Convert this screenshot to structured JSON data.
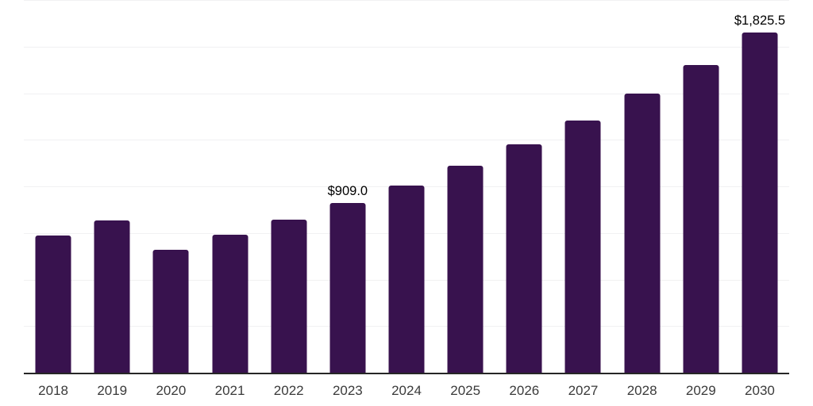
{
  "chart_data": {
    "type": "bar",
    "title": "",
    "xlabel": "",
    "ylabel": "",
    "categories": [
      "2018",
      "2019",
      "2020",
      "2021",
      "2022",
      "2023",
      "2024",
      "2025",
      "2026",
      "2027",
      "2028",
      "2029",
      "2030"
    ],
    "values": [
      736,
      817,
      660,
      741,
      821,
      909.0,
      1004,
      1109,
      1226,
      1354,
      1496,
      1652,
      1825.5
    ],
    "data_labels": {
      "2023": "$909.0",
      "2030": "$1,825.5"
    },
    "ylim": [
      0,
      2000
    ],
    "gridline_interval": 250,
    "grid": "horizontal-only",
    "y_axis_labels_visible": false,
    "legend_position": "none",
    "colors": {
      "bar": "#38124e",
      "axis_line": "#262626",
      "gridline": "#f1f1f2",
      "x_tick_label": "#3a3a3a",
      "data_label": "#000000",
      "background": "#ffffff"
    }
  }
}
